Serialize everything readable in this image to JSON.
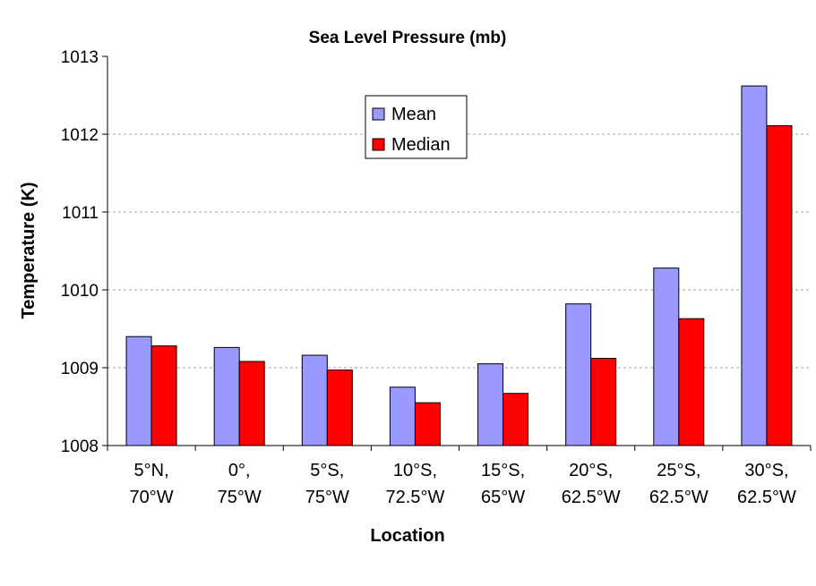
{
  "chart_data": {
    "type": "bar",
    "title": "Sea Level Pressure (mb)",
    "xlabel": "Location",
    "ylabel": "Temperature (K)",
    "ylim": [
      1008,
      1013
    ],
    "yticks": [
      "1008",
      "1009",
      "1010",
      "1011",
      "1012",
      "1013"
    ],
    "grid": true,
    "legend_position": "top-center",
    "categories": [
      [
        "5°N,",
        "70°W"
      ],
      [
        "0°,",
        "75°W"
      ],
      [
        "5°S,",
        "75°W"
      ],
      [
        "10°S,",
        "72.5°W"
      ],
      [
        "15°S,",
        "65°W"
      ],
      [
        "20°S,",
        "62.5°W"
      ],
      [
        "25°S,",
        "62.5°W"
      ],
      [
        "30°S,",
        "62.5°W"
      ]
    ],
    "series": [
      {
        "name": "Mean",
        "color": "#9999ff",
        "values": [
          1009.4,
          1009.26,
          1009.16,
          1008.75,
          1009.05,
          1009.82,
          1010.28,
          1012.62
        ]
      },
      {
        "name": "Median",
        "color": "#ff0000",
        "values": [
          1009.28,
          1009.08,
          1008.97,
          1008.55,
          1008.67,
          1009.12,
          1009.63,
          1012.11
        ]
      }
    ]
  }
}
